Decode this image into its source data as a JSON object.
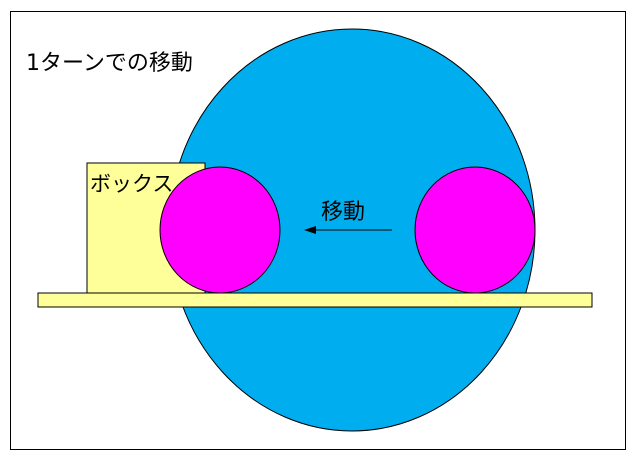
{
  "title": "1ターンでの移動",
  "box_label": "ボックス",
  "move_label": "移動",
  "colors": {
    "background_circle": "#00AEEF",
    "ball": "#FF00FF",
    "box": "#FFFF99",
    "floor": "#FFFF99",
    "outline": "#000000"
  },
  "icons": {
    "arrow": "left-arrow-icon"
  }
}
